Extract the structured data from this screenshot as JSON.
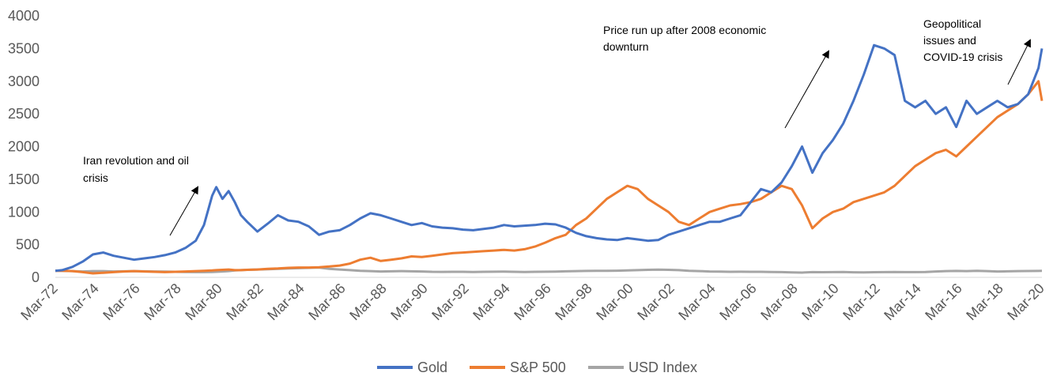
{
  "chart_data": {
    "type": "line",
    "title": "",
    "xlabel": "",
    "ylabel": "",
    "ylim": [
      0,
      4000
    ],
    "yticks": [
      "0",
      "500",
      "1000",
      "1500",
      "2000",
      "2500",
      "3000",
      "3500",
      "4000"
    ],
    "xticks": [
      "Mar-72",
      "Mar-74",
      "Mar-76",
      "Mar-78",
      "Mar-80",
      "Mar-82",
      "Mar-84",
      "Mar-86",
      "Mar-88",
      "Mar-90",
      "Mar-92",
      "Mar-94",
      "Mar-96",
      "Mar-98",
      "Mar-00",
      "Mar-02",
      "Mar-04",
      "Mar-06",
      "Mar-08",
      "Mar-10",
      "Mar-12",
      "Mar-14",
      "Mar-16",
      "Mar-18",
      "Mar-20"
    ],
    "x": [
      1972.17,
      1972.5,
      1973.0,
      1973.5,
      1974.0,
      1974.5,
      1975.0,
      1975.5,
      1976.0,
      1976.5,
      1977.0,
      1977.5,
      1978.0,
      1978.5,
      1979.0,
      1979.4,
      1979.8,
      1980.0,
      1980.3,
      1980.6,
      1980.9,
      1981.2,
      1981.5,
      1982.0,
      1982.5,
      1983.0,
      1983.5,
      1984.0,
      1984.5,
      1985.0,
      1985.5,
      1986.0,
      1986.5,
      1987.0,
      1987.5,
      1988.0,
      1988.5,
      1989.0,
      1989.5,
      1990.0,
      1990.5,
      1991.0,
      1991.5,
      1992.0,
      1992.5,
      1993.0,
      1993.5,
      1994.0,
      1994.5,
      1995.0,
      1995.5,
      1996.0,
      1996.5,
      1997.0,
      1997.5,
      1998.0,
      1998.5,
      1999.0,
      1999.5,
      2000.0,
      2000.5,
      2001.0,
      2001.5,
      2002.0,
      2002.5,
      2003.0,
      2003.5,
      2004.0,
      2004.5,
      2005.0,
      2005.5,
      2006.0,
      2006.5,
      2007.0,
      2007.5,
      2008.0,
      2008.5,
      2009.0,
      2009.5,
      2010.0,
      2010.5,
      2011.0,
      2011.5,
      2012.0,
      2012.5,
      2013.0,
      2013.5,
      2014.0,
      2014.5,
      2015.0,
      2015.5,
      2016.0,
      2016.5,
      2017.0,
      2017.5,
      2018.0,
      2018.5,
      2019.0,
      2019.5,
      2020.0,
      2020.17
    ],
    "series": [
      {
        "name": "Gold",
        "color": "#4472C4",
        "values": [
          100,
          110,
          160,
          240,
          350,
          380,
          330,
          300,
          270,
          290,
          310,
          340,
          380,
          450,
          560,
          800,
          1250,
          1380,
          1200,
          1320,
          1150,
          950,
          850,
          700,
          820,
          950,
          870,
          850,
          780,
          650,
          700,
          720,
          800,
          900,
          980,
          950,
          900,
          850,
          800,
          830,
          780,
          760,
          750,
          730,
          720,
          740,
          760,
          800,
          780,
          790,
          800,
          820,
          810,
          760,
          680,
          630,
          600,
          580,
          570,
          600,
          580,
          560,
          570,
          650,
          700,
          750,
          800,
          850,
          850,
          900,
          950,
          1150,
          1350,
          1300,
          1450,
          1700,
          2000,
          1600,
          1900,
          2100,
          2350,
          2700,
          3100,
          3550,
          3500,
          3400,
          2700,
          2600,
          2700,
          2500,
          2600,
          2300,
          2700,
          2500,
          2600,
          2700,
          2600,
          2650,
          2800,
          3200,
          3500
        ]
      },
      {
        "name": "S&P 500",
        "color": "#ED7D31",
        "values": [
          100,
          100,
          95,
          80,
          60,
          70,
          80,
          90,
          95,
          90,
          85,
          80,
          85,
          90,
          95,
          100,
          105,
          110,
          115,
          120,
          110,
          110,
          115,
          120,
          130,
          135,
          145,
          150,
          150,
          155,
          165,
          180,
          210,
          270,
          300,
          250,
          270,
          290,
          320,
          310,
          330,
          350,
          370,
          380,
          390,
          400,
          410,
          420,
          410,
          430,
          470,
          530,
          600,
          650,
          800,
          900,
          1050,
          1200,
          1300,
          1400,
          1350,
          1200,
          1100,
          1000,
          850,
          800,
          900,
          1000,
          1050,
          1100,
          1120,
          1150,
          1200,
          1300,
          1400,
          1350,
          1100,
          750,
          900,
          1000,
          1050,
          1150,
          1200,
          1250,
          1300,
          1400,
          1550,
          1700,
          1800,
          1900,
          1950,
          1850,
          2000,
          2150,
          2300,
          2450,
          2550,
          2650,
          2800,
          3000,
          2700
        ]
      },
      {
        "name": "USD Index",
        "color": "#A5A5A5",
        "values": [
          100,
          100,
          95,
          90,
          95,
          95,
          90,
          92,
          95,
          92,
          90,
          88,
          85,
          82,
          80,
          80,
          82,
          85,
          90,
          95,
          105,
          110,
          115,
          120,
          125,
          130,
          135,
          140,
          145,
          150,
          130,
          120,
          110,
          100,
          95,
          90,
          92,
          95,
          92,
          90,
          85,
          83,
          85,
          84,
          82,
          85,
          86,
          88,
          85,
          82,
          84,
          86,
          88,
          92,
          95,
          98,
          99,
          100,
          102,
          105,
          110,
          115,
          118,
          115,
          110,
          100,
          95,
          90,
          88,
          85,
          86,
          85,
          84,
          82,
          80,
          75,
          73,
          80,
          78,
          80,
          82,
          77,
          75,
          78,
          80,
          82,
          80,
          80,
          82,
          90,
          95,
          98,
          96,
          100,
          95,
          90,
          92,
          95,
          97,
          98,
          99
        ]
      }
    ],
    "annotations": [
      {
        "text": [
          "Iran revolution and oil",
          "crisis"
        ]
      },
      {
        "text": [
          "Price run up after 2008 economic",
          "downturn"
        ]
      },
      {
        "text": [
          "Geopolitical",
          "issues and",
          "COVID-19 crisis"
        ]
      }
    ],
    "legend": {
      "position": "bottom"
    },
    "grid": false
  }
}
